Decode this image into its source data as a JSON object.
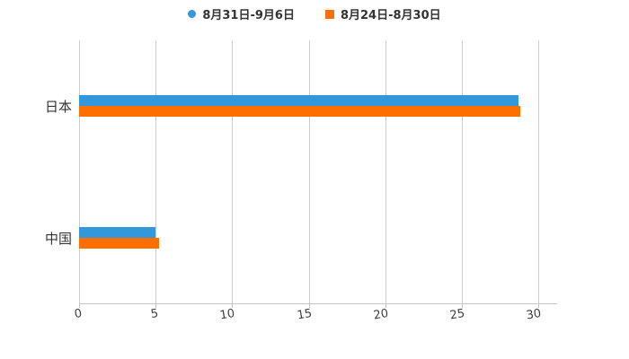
{
  "chart_data": {
    "type": "bar",
    "orientation": "horizontal",
    "title": "",
    "xlabel": "",
    "ylabel": "",
    "categories": [
      "日本",
      "中国"
    ],
    "series": [
      {
        "name": "8月31日-9月6日",
        "marker": "circle",
        "color": "#3398db",
        "values": [
          28.7,
          5.0
        ]
      },
      {
        "name": "8月24日-8月30日",
        "marker": "square",
        "color": "#ff6e00",
        "values": [
          28.8,
          5.2
        ]
      }
    ],
    "xlim": [
      0,
      31.2
    ],
    "xticks": [
      0,
      5,
      10,
      15,
      20,
      25,
      30
    ],
    "grid": "vertical-only",
    "legend_position": "top-center",
    "colors": {
      "background": "#ffffff",
      "grid_color": "#cccccc",
      "axis_color": "#c4c4c4",
      "tick_label_color": "#3d3d3d",
      "category_label_color": "#333333",
      "legend_text_color": "#333333"
    }
  }
}
